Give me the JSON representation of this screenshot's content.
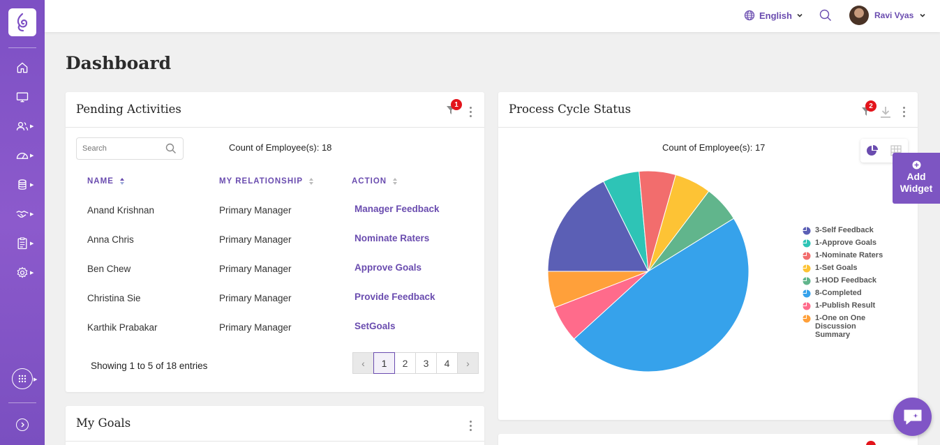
{
  "header": {
    "language": "English",
    "user_name": "Ravi Vyas"
  },
  "page": {
    "title": "Dashboard"
  },
  "pending": {
    "title": "Pending Activities",
    "filter_badge": "1",
    "search_placeholder": "Search",
    "count_text": "Count of Employee(s): 18",
    "columns": [
      "NAME",
      "MY RELATIONSHIP",
      "ACTION"
    ],
    "rows": [
      {
        "name": "Anand Krishnan",
        "relationship": "Primary Manager",
        "action": "Manager Feedback"
      },
      {
        "name": "Anna Chris",
        "relationship": "Primary Manager",
        "action": "Nominate Raters"
      },
      {
        "name": "Ben Chew",
        "relationship": "Primary Manager",
        "action": "Approve Goals"
      },
      {
        "name": "Christina Sie",
        "relationship": "Primary Manager",
        "action": "Provide Feedback"
      },
      {
        "name": "Karthik Prabakar",
        "relationship": "Primary Manager",
        "action": "SetGoals"
      }
    ],
    "showing": "Showing 1 to 5 of 18 entries",
    "pages": [
      "1",
      "2",
      "3",
      "4"
    ],
    "prev": "‹",
    "next": "›"
  },
  "goals": {
    "title": "My Goals"
  },
  "process": {
    "title": "Process Cycle Status",
    "filter_badge": "2",
    "count_text": "Count of Employee(s): 17"
  },
  "chart_data": {
    "type": "pie",
    "title": "Process Cycle Status",
    "labels": [
      "3-Self Feedback",
      "1-Approve Goals",
      "1-Nominate Raters",
      "1-Set Goals",
      "1-HOD Feedback",
      "8-Completed",
      "1-Publish Result",
      "1-One on One Discussion Summary"
    ],
    "values": [
      3,
      1,
      1,
      1,
      1,
      8,
      1,
      1
    ],
    "colors": [
      "#5b5fb5",
      "#2ec4b6",
      "#f26d6d",
      "#fdc335",
      "#61b58c",
      "#36a2eb",
      "#ff6b8b",
      "#ffa03a"
    ],
    "legend_position": "right"
  },
  "add_widget": {
    "line1": "Add",
    "line2": "Widget"
  }
}
